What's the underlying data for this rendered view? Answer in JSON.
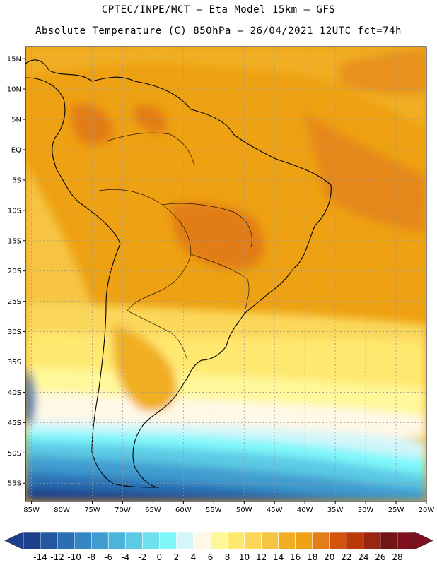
{
  "header": {
    "line1": "CPTEC/INPE/MCT –  Eta Model 15km – GFS",
    "line2": "Absolute Temperature (C) 850hPa – 26/04/2021 12UTC fct=74h"
  },
  "map": {
    "lat_range": [
      -58,
      17
    ],
    "lon_range": [
      -86,
      -20
    ],
    "lat_ticks": [
      {
        "lat": 15,
        "label": "15N"
      },
      {
        "lat": 10,
        "label": "10N"
      },
      {
        "lat": 5,
        "label": "5N"
      },
      {
        "lat": 0,
        "label": "EQ"
      },
      {
        "lat": -5,
        "label": "5S"
      },
      {
        "lat": -10,
        "label": "10S"
      },
      {
        "lat": -15,
        "label": "15S"
      },
      {
        "lat": -20,
        "label": "20S"
      },
      {
        "lat": -25,
        "label": "25S"
      },
      {
        "lat": -30,
        "label": "30S"
      },
      {
        "lat": -35,
        "label": "35S"
      },
      {
        "lat": -40,
        "label": "40S"
      },
      {
        "lat": -45,
        "label": "45S"
      },
      {
        "lat": -50,
        "label": "50S"
      },
      {
        "lat": -55,
        "label": "55S"
      }
    ],
    "lon_ticks": [
      {
        "lon": -85,
        "label": "85W"
      },
      {
        "lon": -80,
        "label": "80W"
      },
      {
        "lon": -75,
        "label": "75W"
      },
      {
        "lon": -70,
        "label": "70W"
      },
      {
        "lon": -65,
        "label": "65W"
      },
      {
        "lon": -60,
        "label": "60W"
      },
      {
        "lon": -55,
        "label": "55W"
      },
      {
        "lon": -50,
        "label": "50W"
      },
      {
        "lon": -45,
        "label": "45W"
      },
      {
        "lon": -40,
        "label": "40W"
      },
      {
        "lon": -35,
        "label": "35W"
      },
      {
        "lon": -30,
        "label": "30W"
      },
      {
        "lon": -25,
        "label": "25W"
      },
      {
        "lon": -20,
        "label": "20W"
      }
    ]
  },
  "colorbar": {
    "labels": [
      "-14",
      "-12",
      "-10",
      "-8",
      "-6",
      "-4",
      "-2",
      "0",
      "2",
      "4",
      "6",
      "8",
      "10",
      "12",
      "14",
      "16",
      "18",
      "20",
      "22",
      "24",
      "26",
      "28"
    ],
    "colors": [
      "#1e3f8c",
      "#2358a0",
      "#2a6fb4",
      "#3385c4",
      "#3f9ccf",
      "#4cb3da",
      "#5ccae5",
      "#6ee0ef",
      "#7ff7fb",
      "#d2f6fa",
      "#fff8e6",
      "#fff89a",
      "#ffe870",
      "#fbd75a",
      "#f6c443",
      "#f1ae24",
      "#eea112",
      "#e27d19",
      "#d4530a",
      "#bb3a0c",
      "#992512",
      "#721514",
      "#7f0f1e"
    ],
    "over_color": "#7f0f1e",
    "under_color": "#1e3f8c"
  }
}
